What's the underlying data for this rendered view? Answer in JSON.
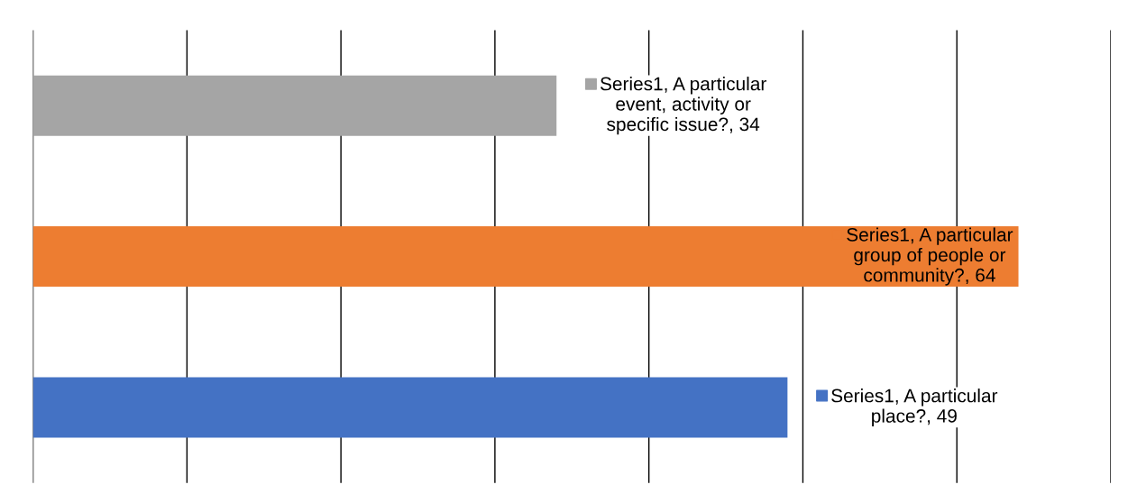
{
  "chart_data": {
    "type": "bar",
    "orientation": "horizontal",
    "categories": [
      null,
      null,
      null
    ],
    "values": [
      34,
      64,
      49
    ],
    "colors": [
      "#a5a5a5",
      "#ed7d31",
      "#4472c4"
    ],
    "value_labels": [
      "Series1, A particular event, activity or specific issue?, 34",
      "Series1, A particular group of people or community?, 64",
      "Series1, A particular place?, 49"
    ],
    "xlim": [
      0,
      70
    ],
    "xticks": [
      {
        "value": 0,
        "label": null
      },
      {
        "value": 10,
        "label": null
      },
      {
        "value": 20,
        "label": null
      },
      {
        "value": 30,
        "label": null
      },
      {
        "value": 40,
        "label": null
      },
      {
        "value": 50,
        "label": null
      },
      {
        "value": 60,
        "label": null
      },
      {
        "value": 70,
        "label": null
      }
    ],
    "grid": "x"
  }
}
